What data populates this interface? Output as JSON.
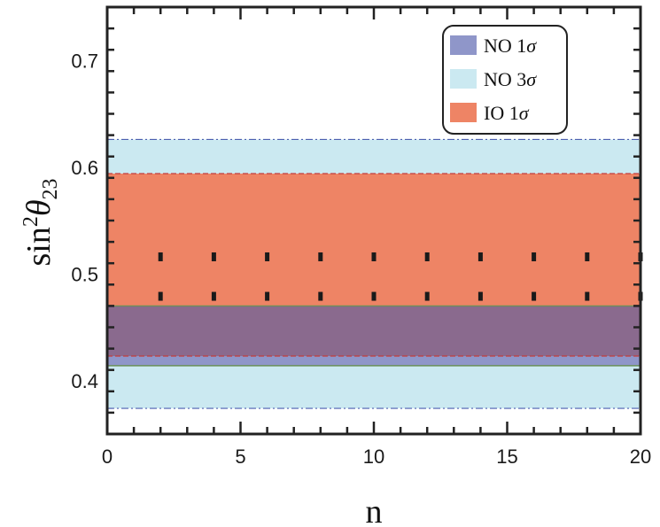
{
  "chart_data": {
    "type": "area",
    "xlabel": "n",
    "ylabel_main": "sin",
    "ylabel_sup": "2",
    "ylabel_theta": "θ",
    "ylabel_sub": "23",
    "xlim": [
      0,
      20
    ],
    "ylim": [
      0.35,
      0.75
    ],
    "x_ticks": [
      0,
      5,
      10,
      15,
      20
    ],
    "x_tick_labels": [
      "0",
      "5",
      "10",
      "15",
      "20"
    ],
    "y_ticks": [
      0.4,
      0.5,
      0.6,
      0.7
    ],
    "y_tick_labels": [
      "0.4",
      "0.5",
      "0.6",
      "0.7"
    ],
    "legend_position": "top-right",
    "bands": [
      {
        "name": "NO 3σ",
        "label_main": "NO 3",
        "label_sym": "σ",
        "lower": 0.374,
        "upper": 0.626,
        "color": "#cbe9f1",
        "edge_color": "#4d5fb0"
      },
      {
        "name": "NO 1σ",
        "label_main": "NO 1",
        "label_sym": "σ",
        "lower": 0.414,
        "upper": 0.47,
        "color": "#8f96c9",
        "edge_color": "#6a8f5a"
      },
      {
        "name": "IO 1σ",
        "label_main": "IO 1",
        "label_sym": "σ",
        "lower": 0.423,
        "upper": 0.594,
        "color": "#ee8465",
        "edge_color": "#c23c3c"
      }
    ],
    "overlap_color": "#8a6a8e",
    "points": {
      "x": [
        2,
        4,
        6,
        8,
        10,
        12,
        14,
        16,
        18,
        20
      ],
      "y_low": [
        0.479,
        0.479,
        0.479,
        0.479,
        0.479,
        0.479,
        0.479,
        0.479,
        0.479,
        0.479
      ],
      "y_high": [
        0.516,
        0.516,
        0.516,
        0.516,
        0.516,
        0.516,
        0.516,
        0.516,
        0.516,
        0.516
      ]
    }
  }
}
